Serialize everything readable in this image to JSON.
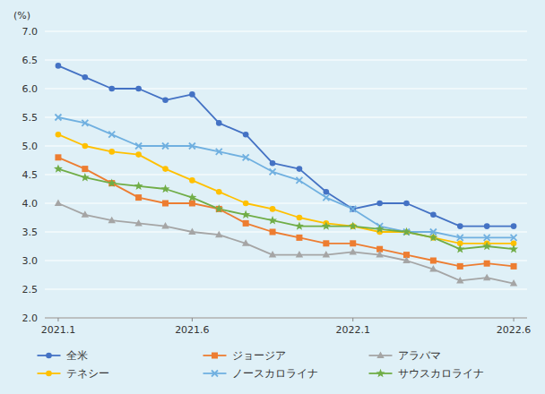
{
  "chart_data": {
    "type": "line",
    "ylabel": "(%)",
    "categories": [
      "2021.1",
      null,
      null,
      null,
      null,
      "2021.6",
      null,
      null,
      null,
      null,
      null,
      "2022.1",
      null,
      null,
      null,
      null,
      null,
      "2022.6"
    ],
    "ylim": [
      2.0,
      7.0
    ],
    "yticks": [
      {
        "value": 2.0,
        "label": "2.0"
      },
      2.5,
      {
        "value": 3.0,
        "label": "3.0"
      },
      3.5,
      {
        "value": 4.0,
        "label": "4.0"
      },
      4.5,
      {
        "value": 5.0,
        "label": "5.0"
      },
      5.5,
      {
        "value": 6.0,
        "label": "6.0"
      },
      6.5,
      {
        "value": 7.0,
        "label": "7.0"
      }
    ],
    "grid": true,
    "legend": "bottom",
    "series": [
      {
        "name": "全米",
        "color": "#4472c4",
        "marker": "circle",
        "values": [
          6.4,
          6.2,
          6.0,
          6.0,
          5.8,
          5.9,
          5.4,
          5.2,
          4.7,
          4.6,
          4.2,
          3.9,
          4.0,
          4.0,
          3.8,
          3.6,
          3.6,
          3.6
        ]
      },
      {
        "name": "ジョージア",
        "color": "#ed7d31",
        "marker": "square",
        "values": [
          4.8,
          4.6,
          4.35,
          4.1,
          4.0,
          4.0,
          3.9,
          3.65,
          3.5,
          3.4,
          3.3,
          3.3,
          3.2,
          3.1,
          3.0,
          2.9,
          2.95,
          2.9
        ]
      },
      {
        "name": "アラバマ",
        "color": "#a5a5a5",
        "marker": "triangle",
        "values": [
          4.0,
          3.8,
          3.7,
          3.65,
          3.6,
          3.5,
          3.45,
          3.3,
          3.1,
          3.1,
          3.1,
          3.15,
          3.1,
          3.0,
          2.85,
          2.65,
          2.7,
          2.6
        ]
      },
      {
        "name": "テネシー",
        "color": "#ffc000",
        "marker": "circle",
        "values": [
          5.2,
          5.0,
          4.9,
          4.85,
          4.6,
          4.4,
          4.2,
          4.0,
          3.9,
          3.75,
          3.65,
          3.6,
          3.5,
          3.5,
          3.4,
          3.3,
          3.3,
          3.3
        ]
      },
      {
        "name": "ノースカロライナ",
        "color": "#70b0e0",
        "marker": "x",
        "values": [
          5.5,
          5.4,
          5.2,
          5.0,
          5.0,
          5.0,
          4.9,
          4.8,
          4.55,
          4.4,
          4.1,
          3.9,
          3.6,
          3.5,
          3.5,
          3.4,
          3.4,
          3.4
        ]
      },
      {
        "name": "サウスカロライナ",
        "color": "#70ad47",
        "marker": "star",
        "values": [
          4.6,
          4.45,
          4.35,
          4.3,
          4.25,
          4.1,
          3.9,
          3.8,
          3.7,
          3.6,
          3.6,
          3.6,
          3.55,
          3.5,
          3.4,
          3.2,
          3.25,
          3.2
        ]
      }
    ]
  }
}
